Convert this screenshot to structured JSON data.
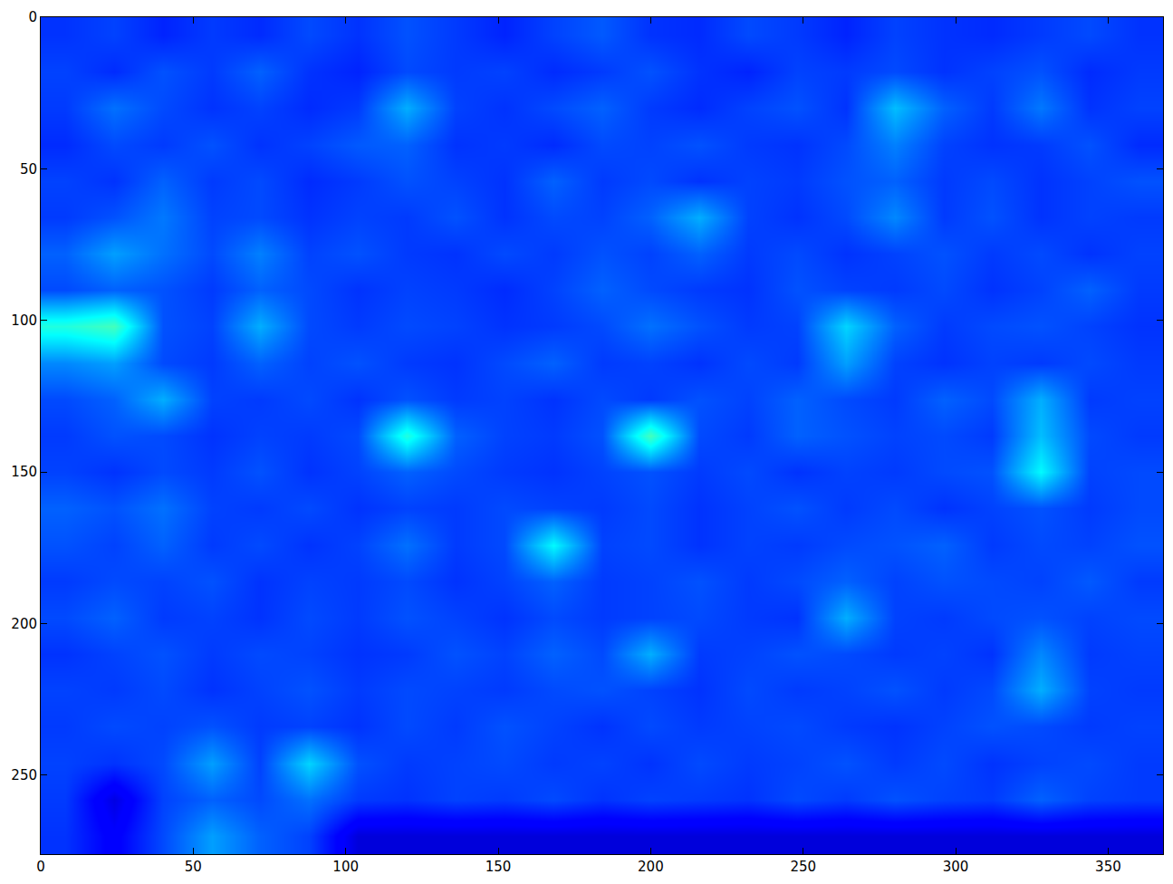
{
  "chart_data": {
    "type": "heatmap",
    "color": "jet",
    "grid": false,
    "xlim": [
      0,
      368
    ],
    "ylim": [
      276,
      0
    ],
    "xticks": [
      0,
      50,
      100,
      150,
      200,
      250,
      300,
      350
    ],
    "yticks": [
      0,
      50,
      100,
      150,
      200,
      250
    ],
    "zlim": [
      0,
      1.4
    ],
    "x": [
      8,
      24,
      40,
      56,
      72,
      88,
      104,
      120,
      136,
      152,
      168,
      184,
      200,
      216,
      232,
      248,
      264,
      280,
      296,
      312,
      328,
      344,
      360
    ],
    "y": [
      6,
      18,
      30,
      42,
      54,
      66,
      78,
      90,
      102,
      114,
      126,
      138,
      150,
      162,
      174,
      186,
      198,
      210,
      222,
      234,
      246,
      258,
      270
    ],
    "cells": [
      [
        0.24,
        0.26,
        0.22,
        0.25,
        0.23,
        0.27,
        0.24,
        0.28,
        0.25,
        0.22,
        0.26,
        0.29,
        0.24,
        0.23,
        0.27,
        0.25,
        0.22,
        0.26,
        0.24,
        0.23,
        0.25,
        0.27,
        0.24
      ],
      [
        0.26,
        0.23,
        0.28,
        0.25,
        0.3,
        0.24,
        0.22,
        0.27,
        0.25,
        0.26,
        0.23,
        0.25,
        0.28,
        0.24,
        0.22,
        0.26,
        0.25,
        0.27,
        0.24,
        0.26,
        0.28,
        0.23,
        0.25
      ],
      [
        0.25,
        0.32,
        0.27,
        0.24,
        0.26,
        0.23,
        0.25,
        0.4,
        0.26,
        0.24,
        0.27,
        0.3,
        0.25,
        0.23,
        0.26,
        0.28,
        0.24,
        0.42,
        0.3,
        0.25,
        0.33,
        0.24,
        0.26
      ],
      [
        0.23,
        0.27,
        0.25,
        0.28,
        0.24,
        0.26,
        0.29,
        0.3,
        0.24,
        0.25,
        0.23,
        0.27,
        0.26,
        0.28,
        0.25,
        0.24,
        0.27,
        0.34,
        0.26,
        0.24,
        0.25,
        0.28,
        0.23
      ],
      [
        0.26,
        0.24,
        0.3,
        0.25,
        0.27,
        0.23,
        0.25,
        0.28,
        0.26,
        0.24,
        0.3,
        0.25,
        0.27,
        0.24,
        0.26,
        0.25,
        0.28,
        0.3,
        0.25,
        0.27,
        0.24,
        0.26,
        0.28
      ],
      [
        0.25,
        0.28,
        0.33,
        0.26,
        0.27,
        0.24,
        0.26,
        0.25,
        0.28,
        0.24,
        0.27,
        0.26,
        0.3,
        0.4,
        0.26,
        0.24,
        0.27,
        0.35,
        0.25,
        0.28,
        0.24,
        0.26,
        0.25
      ],
      [
        0.3,
        0.38,
        0.32,
        0.27,
        0.34,
        0.26,
        0.28,
        0.25,
        0.24,
        0.27,
        0.25,
        0.28,
        0.26,
        0.3,
        0.25,
        0.27,
        0.24,
        0.26,
        0.28,
        0.25,
        0.27,
        0.24,
        0.26
      ],
      [
        0.27,
        0.3,
        0.28,
        0.25,
        0.3,
        0.27,
        0.24,
        0.26,
        0.25,
        0.23,
        0.26,
        0.3,
        0.27,
        0.25,
        0.24,
        0.28,
        0.26,
        0.25,
        0.27,
        0.24,
        0.26,
        0.3,
        0.25
      ],
      [
        0.55,
        0.6,
        0.28,
        0.26,
        0.4,
        0.27,
        0.25,
        0.27,
        0.26,
        0.24,
        0.25,
        0.27,
        0.32,
        0.28,
        0.25,
        0.26,
        0.45,
        0.3,
        0.25,
        0.27,
        0.28,
        0.26,
        0.24
      ],
      [
        0.35,
        0.38,
        0.27,
        0.25,
        0.3,
        0.26,
        0.28,
        0.25,
        0.24,
        0.27,
        0.3,
        0.25,
        0.26,
        0.24,
        0.27,
        0.25,
        0.38,
        0.26,
        0.24,
        0.26,
        0.25,
        0.27,
        0.25
      ],
      [
        0.27,
        0.3,
        0.4,
        0.26,
        0.25,
        0.27,
        0.24,
        0.28,
        0.25,
        0.26,
        0.24,
        0.27,
        0.25,
        0.28,
        0.26,
        0.3,
        0.27,
        0.25,
        0.3,
        0.27,
        0.4,
        0.25,
        0.26
      ],
      [
        0.25,
        0.28,
        0.27,
        0.24,
        0.26,
        0.25,
        0.27,
        0.55,
        0.3,
        0.26,
        0.25,
        0.28,
        0.6,
        0.27,
        0.25,
        0.3,
        0.28,
        0.26,
        0.27,
        0.25,
        0.42,
        0.27,
        0.25
      ],
      [
        0.26,
        0.24,
        0.27,
        0.25,
        0.28,
        0.24,
        0.26,
        0.3,
        0.27,
        0.25,
        0.24,
        0.26,
        0.28,
        0.25,
        0.27,
        0.24,
        0.26,
        0.25,
        0.27,
        0.28,
        0.5,
        0.26,
        0.27
      ],
      [
        0.3,
        0.28,
        0.32,
        0.26,
        0.25,
        0.27,
        0.24,
        0.26,
        0.25,
        0.27,
        0.26,
        0.25,
        0.27,
        0.24,
        0.26,
        0.28,
        0.25,
        0.27,
        0.24,
        0.26,
        0.28,
        0.25,
        0.27
      ],
      [
        0.28,
        0.26,
        0.3,
        0.25,
        0.27,
        0.24,
        0.26,
        0.32,
        0.25,
        0.27,
        0.5,
        0.26,
        0.27,
        0.24,
        0.26,
        0.25,
        0.27,
        0.28,
        0.3,
        0.25,
        0.27,
        0.26,
        0.28
      ],
      [
        0.25,
        0.27,
        0.26,
        0.28,
        0.24,
        0.26,
        0.25,
        0.27,
        0.24,
        0.26,
        0.3,
        0.25,
        0.26,
        0.28,
        0.25,
        0.27,
        0.3,
        0.26,
        0.28,
        0.27,
        0.26,
        0.29,
        0.25
      ],
      [
        0.27,
        0.3,
        0.25,
        0.26,
        0.24,
        0.27,
        0.25,
        0.28,
        0.26,
        0.24,
        0.27,
        0.25,
        0.26,
        0.27,
        0.25,
        0.24,
        0.4,
        0.26,
        0.25,
        0.27,
        0.28,
        0.26,
        0.27
      ],
      [
        0.24,
        0.26,
        0.28,
        0.25,
        0.27,
        0.26,
        0.24,
        0.25,
        0.28,
        0.26,
        0.3,
        0.27,
        0.4,
        0.25,
        0.26,
        0.28,
        0.27,
        0.25,
        0.26,
        0.24,
        0.35,
        0.25,
        0.26
      ],
      [
        0.26,
        0.25,
        0.27,
        0.24,
        0.26,
        0.28,
        0.25,
        0.27,
        0.26,
        0.25,
        0.27,
        0.28,
        0.26,
        0.24,
        0.27,
        0.25,
        0.26,
        0.28,
        0.25,
        0.27,
        0.4,
        0.26,
        0.25
      ],
      [
        0.25,
        0.27,
        0.26,
        0.28,
        0.25,
        0.26,
        0.24,
        0.27,
        0.25,
        0.28,
        0.26,
        0.24,
        0.27,
        0.25,
        0.26,
        0.27,
        0.25,
        0.24,
        0.26,
        0.28,
        0.27,
        0.25,
        0.26
      ],
      [
        0.26,
        0.24,
        0.27,
        0.38,
        0.26,
        0.45,
        0.28,
        0.25,
        0.26,
        0.27,
        0.25,
        0.26,
        0.24,
        0.27,
        0.25,
        0.26,
        0.28,
        0.25,
        0.27,
        0.24,
        0.26,
        0.27,
        0.25
      ],
      [
        0.25,
        0.12,
        0.26,
        0.3,
        0.27,
        0.32,
        0.25,
        0.24,
        0.26,
        0.25,
        0.27,
        0.24,
        0.26,
        0.25,
        0.24,
        0.27,
        0.25,
        0.28,
        0.26,
        0.25,
        0.3,
        0.26,
        0.25
      ],
      [
        0.24,
        0.16,
        0.27,
        0.38,
        0.3,
        0.26,
        0.11,
        0.11,
        0.11,
        0.11,
        0.11,
        0.11,
        0.11,
        0.11,
        0.11,
        0.11,
        0.11,
        0.11,
        0.11,
        0.11,
        0.11,
        0.11,
        0.11
      ]
    ]
  }
}
